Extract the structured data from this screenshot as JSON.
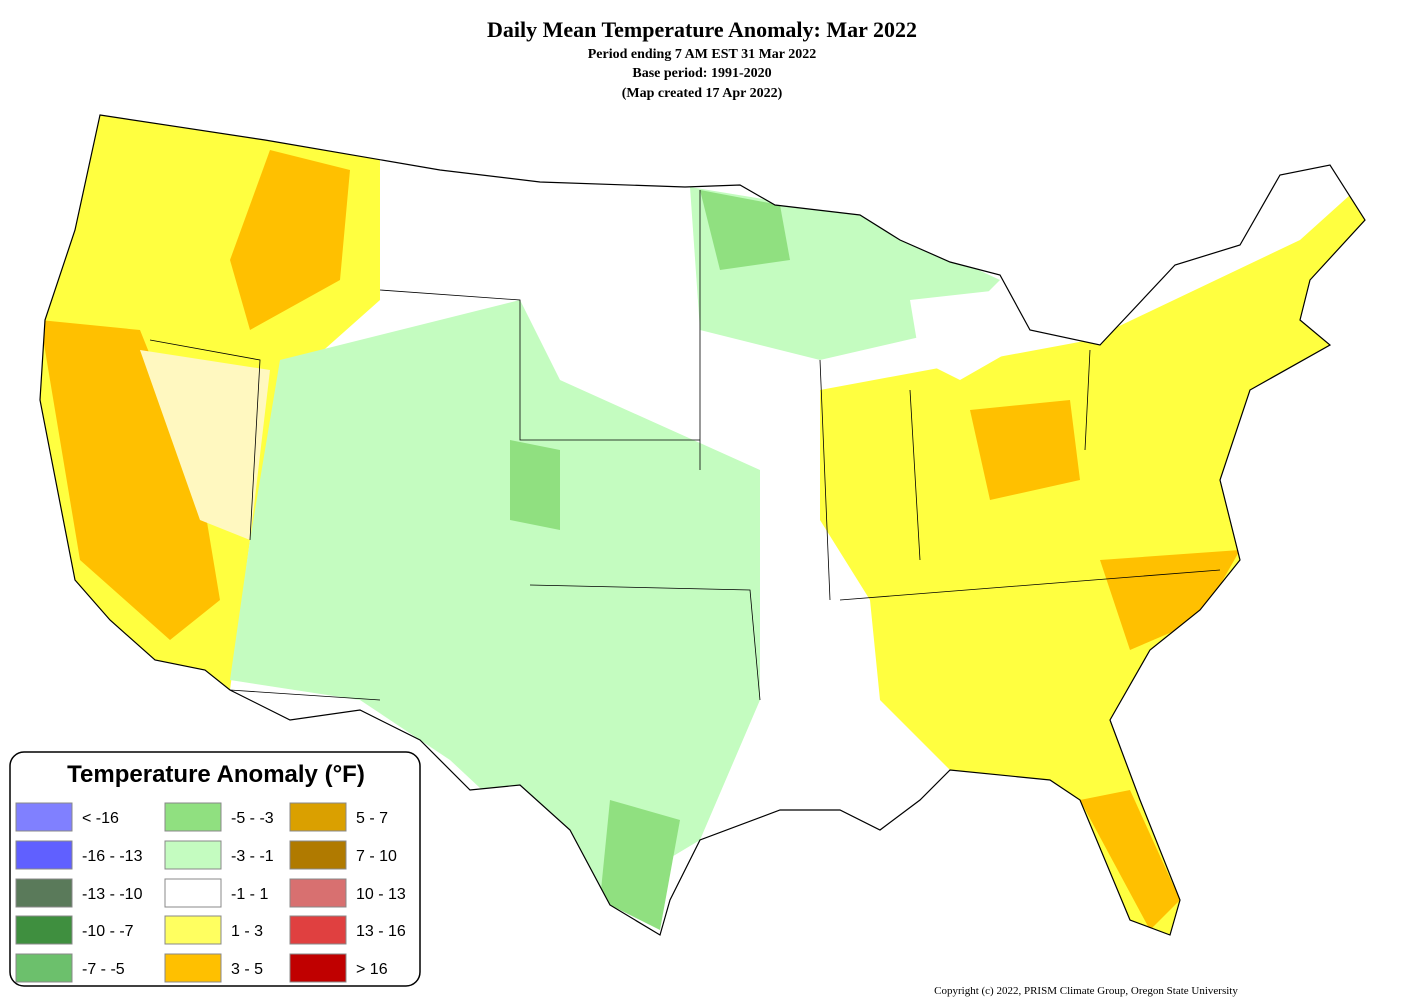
{
  "header": {
    "title": "Daily Mean Temperature Anomaly: Mar 2022",
    "lines": [
      "Period ending 7 AM EST 31 Mar 2022",
      "Base period: 1991-2020",
      "(Map created 17 Apr 2022)"
    ]
  },
  "legend": {
    "title": "Temperature Anomaly (°F)",
    "items": [
      {
        "label": "< -16",
        "color": "#8080ff"
      },
      {
        "label": "-16 - -13",
        "color": "#6060ff"
      },
      {
        "label": "-13 - -10",
        "color": "#5a7a5a"
      },
      {
        "label": "-10 - -7",
        "color": "#3f8f3f"
      },
      {
        "label": "-7 - -5",
        "color": "#6cc06c"
      },
      {
        "label": "-5 - -3",
        "color": "#90e080"
      },
      {
        "label": "-3 - -1",
        "color": "#c4fcc0"
      },
      {
        "label": "-1 - 1",
        "color": "#ffffff"
      },
      {
        "label": "1 - 3",
        "color": "#ffff60"
      },
      {
        "label": "3 - 5",
        "color": "#ffc000"
      },
      {
        "label": "5 - 7",
        "color": "#daa000"
      },
      {
        "label": "7 - 10",
        "color": "#b07a00"
      },
      {
        "label": "10 - 13",
        "color": "#d87070"
      },
      {
        "label": "13 - 16",
        "color": "#e04040"
      },
      {
        "label": "> 16",
        "color": "#c00000"
      }
    ]
  },
  "footer": {
    "copyright": "Copyright (c) 2022, PRISM Climate Group, Oregon State University"
  }
}
